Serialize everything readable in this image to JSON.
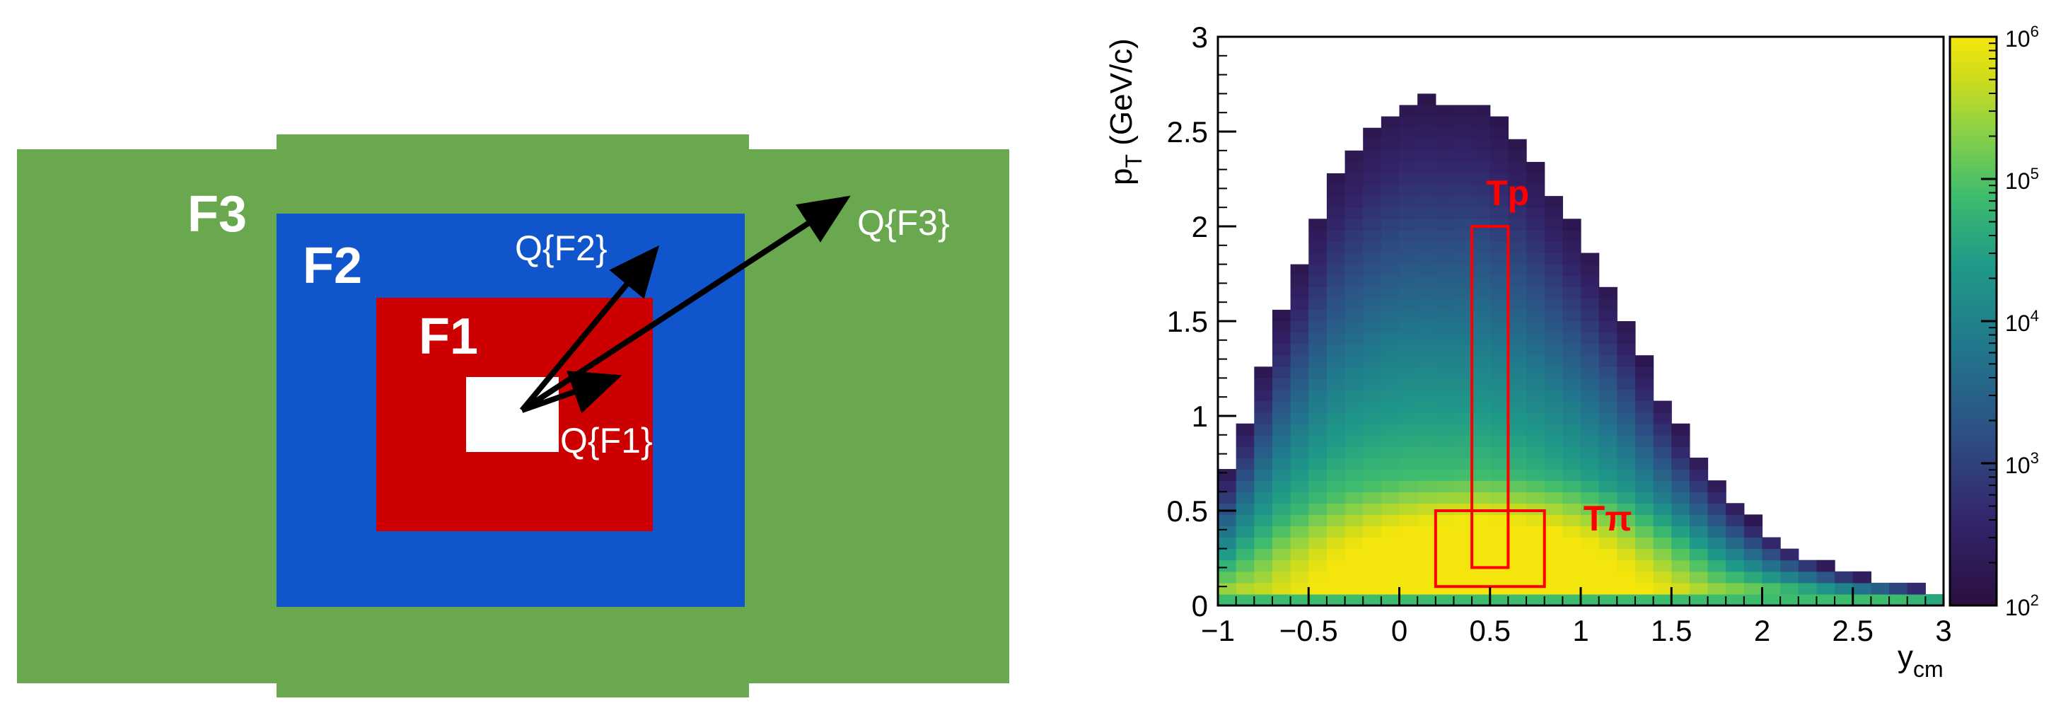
{
  "diagram": {
    "labels": {
      "f3": "F3",
      "f2": "F2",
      "f1": "F1"
    },
    "vectors": {
      "q1": "Q{F1}",
      "q2": "Q{F2}",
      "q3": "Q{F3}"
    },
    "colors": {
      "f3": "#6aa84f",
      "f2": "#1155cc",
      "f1": "#cc0000",
      "center": "#ffffff",
      "arrow": "#000000",
      "label_text": "#ffffff"
    }
  },
  "chart_data": {
    "type": "heatmap",
    "xlabel_main": "y",
    "xlabel_sub": "cm",
    "ylabel_main": "p",
    "ylabel_sub": "T",
    "ylabel_unit": " (GeV/c)",
    "xlim": [
      -1,
      3
    ],
    "ylim": [
      0,
      3
    ],
    "x_ticks": [
      {
        "v": -1,
        "label": "−1"
      },
      {
        "v": -0.5,
        "label": "−0.5"
      },
      {
        "v": 0,
        "label": "0"
      },
      {
        "v": 0.5,
        "label": "0.5"
      },
      {
        "v": 1,
        "label": "1"
      },
      {
        "v": 1.5,
        "label": "1.5"
      },
      {
        "v": 2,
        "label": "2"
      },
      {
        "v": 2.5,
        "label": "2.5"
      },
      {
        "v": 3,
        "label": "3"
      }
    ],
    "y_ticks": [
      {
        "v": 0,
        "label": "0"
      },
      {
        "v": 0.5,
        "label": "0.5"
      },
      {
        "v": 1,
        "label": "1"
      },
      {
        "v": 1.5,
        "label": "1.5"
      },
      {
        "v": 2,
        "label": "2"
      },
      {
        "v": 2.5,
        "label": "2.5"
      },
      {
        "v": 3,
        "label": "3"
      }
    ],
    "colorbar": {
      "scale": "log",
      "range": [
        100,
        1000000
      ],
      "ticks": [
        {
          "v": 2,
          "base": "10",
          "exp": "2"
        },
        {
          "v": 3,
          "base": "10",
          "exp": "3"
        },
        {
          "v": 4,
          "base": "10",
          "exp": "4"
        },
        {
          "v": 5,
          "base": "10",
          "exp": "5"
        },
        {
          "v": 6,
          "base": "10",
          "exp": "6"
        }
      ]
    },
    "distribution": {
      "description_free": true,
      "envelope_upper_pt": [
        [
          -1.0,
          0.6
        ],
        [
          -0.9,
          0.83
        ],
        [
          -0.8,
          1.1
        ],
        [
          -0.7,
          1.4
        ],
        [
          -0.6,
          1.68
        ],
        [
          -0.5,
          1.9
        ],
        [
          -0.4,
          2.2
        ],
        [
          -0.3,
          2.35
        ],
        [
          -0.2,
          2.48
        ],
        [
          -0.1,
          2.57
        ],
        [
          0.0,
          2.63
        ],
        [
          0.1,
          2.68
        ],
        [
          0.2,
          2.66
        ],
        [
          0.3,
          2.65
        ],
        [
          0.4,
          2.68
        ],
        [
          0.5,
          2.6
        ],
        [
          0.6,
          2.5
        ],
        [
          0.7,
          2.38
        ],
        [
          0.8,
          2.25
        ],
        [
          0.9,
          2.1
        ],
        [
          1.0,
          1.95
        ],
        [
          1.1,
          1.78
        ],
        [
          1.2,
          1.6
        ],
        [
          1.3,
          1.4
        ],
        [
          1.4,
          1.2
        ],
        [
          1.5,
          1.02
        ],
        [
          1.6,
          0.86
        ],
        [
          1.7,
          0.72
        ],
        [
          1.8,
          0.6
        ],
        [
          1.9,
          0.5
        ],
        [
          2.0,
          0.41
        ],
        [
          2.1,
          0.34
        ],
        [
          2.2,
          0.28
        ],
        [
          2.3,
          0.24
        ],
        [
          2.4,
          0.2
        ],
        [
          2.5,
          0.17
        ],
        [
          2.6,
          0.15
        ],
        [
          2.7,
          0.13
        ],
        [
          2.8,
          0.11
        ],
        [
          2.9,
          0.1
        ],
        [
          3.0,
          0.08
        ]
      ],
      "peak_y": 0.5,
      "peak_pt": 0.25
    },
    "boxes": [
      {
        "name": "Tp",
        "x": [
          0.4,
          0.6
        ],
        "y": [
          0.2,
          2.0
        ],
        "label": "Tp"
      },
      {
        "name": "Tπ",
        "x": [
          0.2,
          0.8
        ],
        "y": [
          0.1,
          0.5
        ],
        "label": "Tπ"
      }
    ],
    "box_color": "#ff0000"
  }
}
